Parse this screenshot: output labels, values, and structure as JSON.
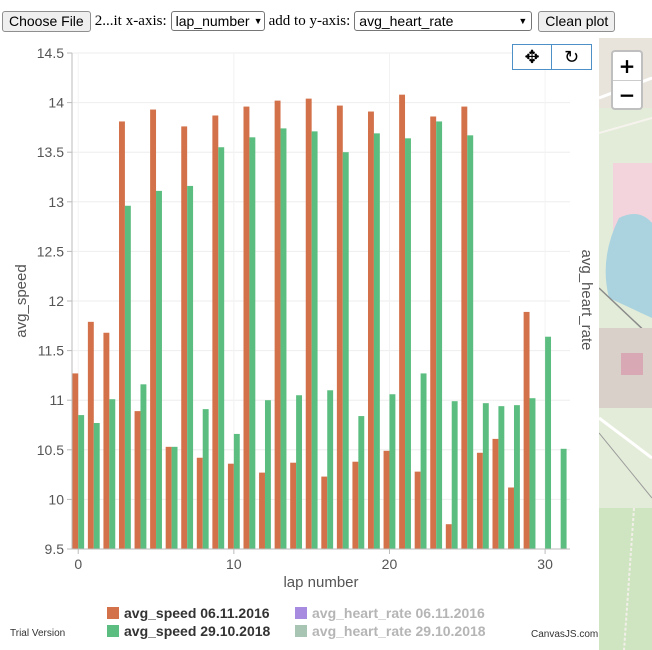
{
  "toolbar": {
    "choose_file_label": "Choose File",
    "file_name": "2...it",
    "x_axis_label": "x-axis:",
    "x_axis_value": "lap_number",
    "y_axis_label": "add to y-axis:",
    "y_axis_value": "avg_heart_rate",
    "clean_plot_label": "Clean plot"
  },
  "chart_tools": {
    "pan_icon": "move-arrows-icon",
    "reset_icon": "reset-icon"
  },
  "map": {
    "zoom_in_label": "+",
    "zoom_out_label": "−"
  },
  "watermark": {
    "trial": "Trial Version",
    "credit": "CanvasJS.com"
  },
  "chart_data": {
    "type": "bar",
    "xlabel": "lap number",
    "ylabel": "avg_speed",
    "y2label": "avg_heart_rate",
    "xlim": [
      -0.4,
      31.6
    ],
    "ylim": [
      9.5,
      14.5
    ],
    "x_ticks": [
      0,
      10,
      20,
      30
    ],
    "y_ticks": [
      9.5,
      10,
      10.5,
      11,
      11.5,
      12,
      12.5,
      13,
      13.5,
      14,
      14.5
    ],
    "y_tick_labels": [
      "9.5",
      "10",
      "10.5",
      "11",
      "11.5",
      "12",
      "12.5",
      "13",
      "13.5",
      "14",
      "14.5"
    ],
    "grid": true,
    "legend_position": "bottom",
    "legend": [
      {
        "name": "avg_speed 06.11.2016",
        "color": "#d3724a",
        "enabled": true
      },
      {
        "name": "avg_heart_rate 06.11.2016",
        "color": "#a68be0",
        "enabled": false
      },
      {
        "name": "avg_speed 29.10.2018",
        "color": "#5bbd7f",
        "enabled": true
      },
      {
        "name": "avg_heart_rate 29.10.2018",
        "color": "#a8c4b3",
        "enabled": false
      }
    ],
    "series": [
      {
        "name": "avg_speed 06.11.2016",
        "color": "#d3724a",
        "x": [
          0,
          1,
          2,
          3,
          4,
          5,
          6,
          7,
          8,
          9,
          10,
          11,
          12,
          13,
          14,
          15,
          16,
          17,
          18,
          19,
          20,
          21,
          22,
          23,
          24,
          25,
          26,
          27,
          28,
          29
        ],
        "values": [
          11.27,
          11.79,
          11.68,
          13.81,
          10.89,
          13.93,
          10.53,
          13.76,
          10.42,
          13.87,
          10.36,
          13.96,
          10.27,
          14.02,
          10.37,
          14.04,
          10.23,
          13.97,
          10.38,
          13.91,
          10.49,
          14.08,
          10.28,
          13.86,
          9.75,
          13.96,
          10.47,
          10.61,
          10.12,
          11.89
        ]
      },
      {
        "name": "avg_speed 29.10.2018",
        "color": "#5bbd7f",
        "x": [
          0,
          1,
          2,
          3,
          4,
          5,
          6,
          7,
          8,
          9,
          10,
          11,
          12,
          13,
          14,
          15,
          16,
          17,
          18,
          19,
          20,
          21,
          22,
          23,
          24,
          25,
          26,
          27,
          28,
          29,
          30,
          31
        ],
        "values": [
          10.85,
          10.77,
          11.01,
          12.96,
          11.16,
          13.11,
          10.53,
          13.16,
          10.91,
          13.55,
          10.66,
          13.65,
          11.0,
          13.74,
          11.05,
          13.71,
          11.1,
          13.5,
          10.84,
          13.69,
          11.06,
          13.64,
          11.27,
          13.81,
          10.99,
          13.67,
          10.97,
          10.94,
          10.95,
          11.02,
          11.64,
          10.51
        ]
      }
    ]
  }
}
